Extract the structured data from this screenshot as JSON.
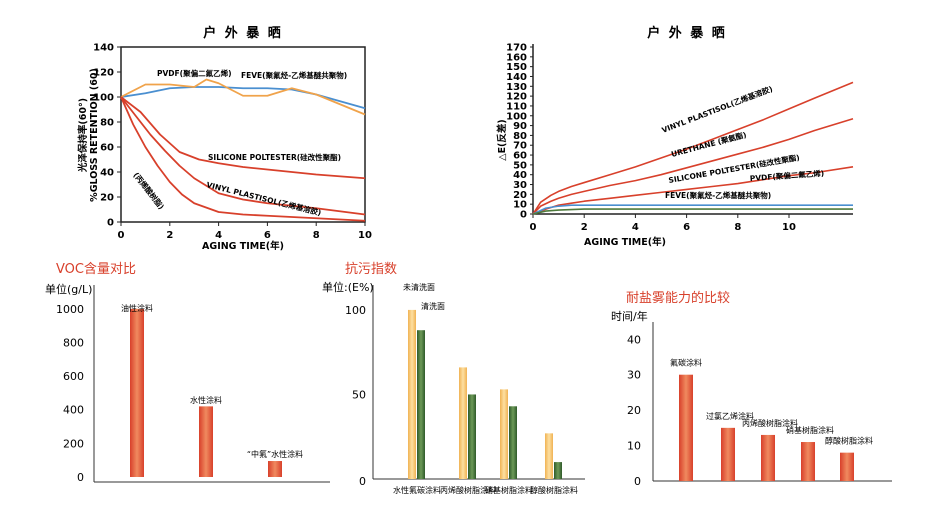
{
  "colors": {
    "red": "#d8402b",
    "orange": "#f0a34b",
    "green": "#4e7a3c",
    "blue": "#4a8fd0",
    "yellow": "#f5c36a",
    "darkgreen": "#3d6b35"
  },
  "chart_data": [
    {
      "type": "line",
      "title": "户 外 暴 晒",
      "xlabel": "AGING TIME(年)",
      "ylabel": "光泽保持率(60°)",
      "ylabel2": "%GLOSS RETENTION (60)",
      "xlim": [
        0,
        10
      ],
      "ylim": [
        0,
        140
      ],
      "xticks": [
        "0",
        "2",
        "4",
        "6",
        "8",
        "10"
      ],
      "yticks": [
        "0",
        "20",
        "40",
        "60",
        "80",
        "100",
        "120",
        "140"
      ],
      "series": [
        {
          "name": "PVDF(聚偏二氟乙烯)",
          "color": "#4a8fd0",
          "x": [
            0,
            1,
            2,
            3,
            4,
            5,
            6,
            7,
            8,
            10
          ],
          "y": [
            100,
            103,
            107,
            108,
            108,
            107,
            107,
            106,
            102,
            91
          ]
        },
        {
          "name": "FEVE(聚氟烃-乙烯基醚共聚物)",
          "color": "#f0a34b",
          "x": [
            0,
            1,
            2,
            3,
            3.5,
            4,
            5,
            6,
            7,
            8,
            10
          ],
          "y": [
            100,
            110,
            110,
            108,
            114,
            111,
            101,
            101,
            107,
            102,
            86
          ]
        },
        {
          "name": "SILICONE POLTESTER(硅改性聚酯)",
          "color": "#d8402b",
          "x": [
            0,
            0.8,
            1.6,
            2.4,
            3.2,
            4,
            5,
            6,
            7,
            8,
            10
          ],
          "y": [
            100,
            88,
            70,
            56,
            50,
            47,
            44,
            42,
            40,
            38,
            35
          ]
        },
        {
          "name": "VINYL PLASTISOL(乙烯基溶胶)",
          "color": "#d8402b",
          "x": [
            0,
            0.6,
            1.2,
            1.8,
            2.4,
            3,
            4,
            5,
            6,
            7,
            8,
            10
          ],
          "y": [
            100,
            85,
            70,
            57,
            45,
            35,
            23,
            18,
            15,
            13,
            11,
            6
          ]
        },
        {
          "name": "(丙烯酸树脂)",
          "color": "#d8402b",
          "x": [
            0,
            0.5,
            1,
            1.5,
            2,
            2.5,
            3,
            4,
            5,
            6,
            7,
            8,
            10
          ],
          "y": [
            100,
            78,
            60,
            45,
            32,
            22,
            15,
            8,
            6,
            5,
            4,
            3,
            1
          ]
        }
      ]
    },
    {
      "type": "line",
      "title": "户 外 暴 晒",
      "xlabel": "AGING TIME(年)",
      "ylabel": "△E(反差)",
      "xlim": [
        0,
        12.5
      ],
      "ylim": [
        0,
        170
      ],
      "xticks": [
        "0",
        "2",
        "4",
        "6",
        "8",
        "10"
      ],
      "yticks": [
        "0",
        "10",
        "20",
        "30",
        "40",
        "50",
        "60",
        "70",
        "80",
        "90",
        "100",
        "110",
        "120",
        "130",
        "140",
        "150",
        "160",
        "170"
      ],
      "series": [
        {
          "name": "VINYL PLASTISOL(乙烯基溶胶)",
          "color": "#d8402b",
          "x": [
            0,
            0.3,
            0.7,
            1,
            1.5,
            2,
            3,
            4,
            5,
            6,
            7,
            8,
            9,
            10,
            11,
            12.5
          ],
          "y": [
            0,
            12,
            19,
            23,
            28,
            32,
            40,
            48,
            57,
            66,
            76,
            86,
            96,
            107,
            118,
            134
          ]
        },
        {
          "name": "URETHANE (聚氨酯)",
          "color": "#d8402b",
          "x": [
            0,
            0.3,
            0.7,
            1,
            1.5,
            2,
            3,
            4,
            5,
            6,
            7,
            8,
            9,
            10,
            11,
            12.5
          ],
          "y": [
            0,
            8,
            13,
            16,
            20,
            23,
            29,
            34,
            40,
            47,
            54,
            61,
            68,
            76,
            85,
            97
          ]
        },
        {
          "name": "SILICONE POLTESTER(硅改性聚酯)",
          "color": "#d8402b",
          "x": [
            0,
            0.5,
            1,
            1.5,
            2,
            3,
            4,
            5,
            6,
            7,
            8,
            9,
            10,
            11,
            12.5
          ],
          "y": [
            0,
            5,
            9,
            11,
            13,
            16,
            19,
            22,
            25,
            28,
            31,
            35,
            39,
            42,
            48
          ]
        },
        {
          "name": "PVDF(聚偏二氟乙烯)",
          "color": "#4a8fd0",
          "x": [
            0,
            0.5,
            1,
            1.5,
            2,
            3,
            6,
            9,
            12.5
          ],
          "y": [
            0,
            6,
            8,
            9,
            9,
            9,
            9,
            9,
            9
          ]
        },
        {
          "name": "FEVE(聚氟烃-乙烯基醚共聚物)",
          "color": "#4e7a3c",
          "x": [
            0,
            0.5,
            1,
            2,
            4,
            8,
            12.5
          ],
          "y": [
            0,
            3,
            4,
            5,
            5,
            5,
            5
          ]
        }
      ]
    },
    {
      "type": "bar",
      "title": "VOC含量对比",
      "ylabel": "单位(g/L)",
      "ylim": [
        0,
        1100
      ],
      "yticks": [
        "0",
        "200",
        "400",
        "600",
        "800",
        "1000"
      ],
      "categories": [
        "油性涂料",
        "水性涂料",
        "“中氟”水性涂料"
      ],
      "values": [
        1000,
        420,
        95
      ]
    },
    {
      "type": "bar",
      "title": "抗污指数",
      "ylabel": "单位:(E%)",
      "ylim": [
        0,
        110
      ],
      "yticks": [
        "0",
        "50",
        "100"
      ],
      "categories": [
        "水性氟碳涂料",
        "丙烯酸树脂涂料",
        "硝基树脂涂料",
        "醇酸树脂涂料"
      ],
      "series": [
        {
          "name": "未清洗面",
          "color": "#f5c36a",
          "values": [
            100,
            66,
            53,
            27
          ]
        },
        {
          "name": "清洗面",
          "color": "#3d6b35",
          "values": [
            88,
            50,
            43,
            10
          ]
        }
      ]
    },
    {
      "type": "bar",
      "title": "耐盐雾能力的比较",
      "ylabel": "时间/年",
      "ylim": [
        0,
        46
      ],
      "yticks": [
        "0",
        "10",
        "20",
        "30",
        "40"
      ],
      "categories": [
        "氟碳涂料",
        "过氯乙烯涂料",
        "丙烯酸树脂涂料",
        "硝基树脂涂料",
        "醇酸树脂涂料"
      ],
      "values": [
        30,
        15,
        13,
        11,
        8
      ]
    }
  ]
}
